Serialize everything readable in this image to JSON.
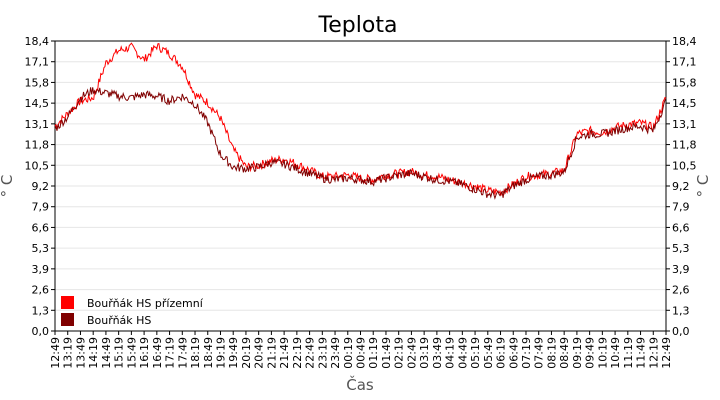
{
  "chart_data": {
    "type": "line",
    "title": "Teplota",
    "xlabel": "Čas",
    "ylabel": "° C",
    "ylabel_right": "° C",
    "ylim": [
      0,
      18.4
    ],
    "y_ticks": [
      "0,0",
      "1,3",
      "2,6",
      "3,9",
      "5,3",
      "6,6",
      "7,9",
      "9,2",
      "10,5",
      "11,8",
      "13,1",
      "14,5",
      "15,8",
      "17,1",
      "18,4"
    ],
    "x_ticks": [
      "12:49",
      "13:19",
      "13:49",
      "14:19",
      "14:49",
      "15:19",
      "15:49",
      "16:19",
      "16:49",
      "17:19",
      "17:49",
      "18:19",
      "18:49",
      "19:19",
      "19:49",
      "20:19",
      "20:49",
      "21:19",
      "21:49",
      "22:19",
      "22:49",
      "23:19",
      "23:49",
      "00:19",
      "00:49",
      "01:19",
      "01:49",
      "02:19",
      "02:49",
      "03:19",
      "03:49",
      "04:19",
      "04:49",
      "05:19",
      "05:49",
      "06:19",
      "06:49",
      "07:19",
      "07:49",
      "08:19",
      "08:49",
      "09:19",
      "09:49",
      "10:19",
      "10:49",
      "11:19",
      "11:49",
      "12:19",
      "12:49"
    ],
    "grid": true,
    "legend_position": "bottom-left",
    "series": [
      {
        "name": "Bouřňák HS přízemní",
        "color": "#ff0000",
        "values": [
          13.0,
          13.8,
          14.6,
          14.8,
          17.0,
          17.8,
          18.0,
          17.2,
          18.1,
          17.6,
          16.8,
          15.0,
          14.5,
          13.5,
          11.5,
          10.4,
          10.5,
          10.8,
          10.9,
          10.6,
          10.2,
          9.8,
          9.8,
          9.9,
          9.7,
          9.6,
          9.9,
          10.0,
          10.1,
          9.9,
          9.8,
          9.6,
          9.4,
          9.2,
          8.9,
          8.8,
          9.3,
          9.8,
          9.9,
          10.0,
          10.2,
          12.5,
          12.7,
          12.6,
          12.9,
          13.1,
          13.2,
          12.9,
          14.8
        ]
      },
      {
        "name": "Bouřňák HS",
        "color": "#800000",
        "values": [
          12.8,
          13.6,
          14.8,
          15.3,
          15.1,
          14.9,
          14.8,
          15.0,
          14.9,
          14.6,
          14.9,
          14.4,
          13.2,
          11.2,
          10.4,
          10.3,
          10.4,
          10.7,
          10.6,
          10.3,
          10.0,
          9.7,
          9.6,
          9.7,
          9.6,
          9.5,
          9.7,
          9.9,
          10.0,
          9.8,
          9.6,
          9.5,
          9.3,
          9.0,
          8.7,
          8.6,
          9.2,
          9.6,
          9.8,
          9.9,
          10.1,
          12.3,
          12.5,
          12.5,
          12.7,
          12.9,
          13.0,
          12.7,
          14.6
        ]
      }
    ]
  }
}
